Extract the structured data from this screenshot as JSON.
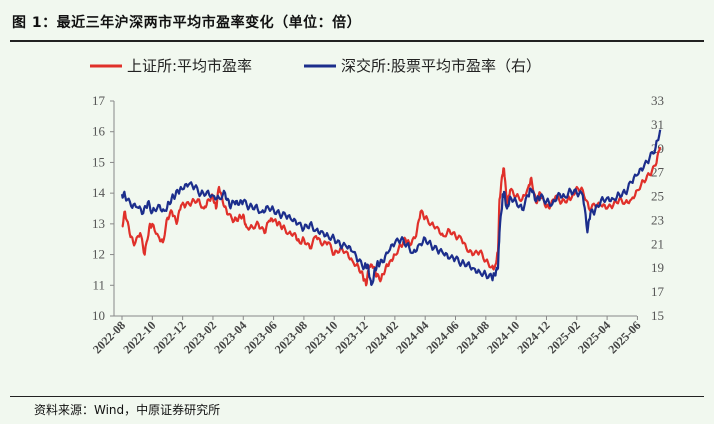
{
  "header": {
    "title": "图 1：最近三年沪深两市平均市盈率变化（单位：倍）"
  },
  "footer": {
    "source": "资料来源：Wind，中原证券研究所"
  },
  "colors": {
    "shanghai": "#e0302a",
    "shenzhen": "#1c2e8c",
    "background": "#f1f8ef"
  },
  "chart_data": {
    "type": "line",
    "title": "最近三年沪深两市平均市盈率变化（单位：倍）",
    "x_categories": [
      "2022-08",
      "2022-10",
      "2022-12",
      "2023-02",
      "2023-04",
      "2023-06",
      "2023-08",
      "2023-10",
      "2023-12",
      "2024-02",
      "2024-04",
      "2024-06",
      "2024-08",
      "2024-10",
      "2024-12",
      "2025-02",
      "2025-04",
      "2025-06"
    ],
    "left_axis": {
      "min": 10,
      "max": 17,
      "ticks": [
        10,
        11,
        12,
        13,
        14,
        15,
        16,
        17
      ]
    },
    "right_axis": {
      "min": 15,
      "max": 33,
      "ticks": [
        15,
        17,
        19,
        21,
        23,
        25,
        27,
        29,
        31,
        33
      ]
    },
    "series": [
      {
        "name": "上证所:平均市盈率",
        "axis": "left",
        "points": [
          [
            0,
            12.9
          ],
          [
            0.1,
            13.4
          ],
          [
            0.25,
            12.7
          ],
          [
            0.4,
            12.3
          ],
          [
            0.6,
            12.7
          ],
          [
            0.75,
            12.0
          ],
          [
            0.9,
            12.9
          ],
          [
            1.0,
            13.0
          ],
          [
            1.2,
            12.6
          ],
          [
            1.35,
            12.4
          ],
          [
            1.5,
            13.2
          ],
          [
            1.65,
            13.4
          ],
          [
            1.8,
            13.0
          ],
          [
            1.95,
            13.6
          ],
          [
            2.1,
            13.6
          ],
          [
            2.3,
            13.7
          ],
          [
            2.5,
            13.8
          ],
          [
            2.7,
            13.5
          ],
          [
            2.85,
            13.8
          ],
          [
            3.0,
            13.9
          ],
          [
            3.1,
            13.5
          ],
          [
            3.2,
            14.2
          ],
          [
            3.35,
            13.6
          ],
          [
            3.5,
            13.3
          ],
          [
            3.7,
            13.1
          ],
          [
            3.85,
            13.2
          ],
          [
            4.0,
            13.3
          ],
          [
            4.1,
            12.9
          ],
          [
            4.3,
            12.9
          ],
          [
            4.5,
            13.0
          ],
          [
            4.7,
            12.7
          ],
          [
            4.85,
            13.1
          ],
          [
            5.0,
            13.1
          ],
          [
            5.15,
            13.0
          ],
          [
            5.3,
            12.9
          ],
          [
            5.5,
            12.7
          ],
          [
            5.7,
            12.7
          ],
          [
            5.85,
            12.4
          ],
          [
            6.0,
            12.5
          ],
          [
            6.2,
            12.2
          ],
          [
            6.4,
            12.6
          ],
          [
            6.6,
            12.3
          ],
          [
            6.8,
            12.4
          ],
          [
            7.0,
            12.0
          ],
          [
            7.2,
            12.2
          ],
          [
            7.4,
            12.1
          ],
          [
            7.6,
            11.8
          ],
          [
            7.8,
            11.6
          ],
          [
            7.95,
            11.3
          ],
          [
            8.05,
            11.0
          ],
          [
            8.15,
            11.6
          ],
          [
            8.3,
            11.6
          ],
          [
            8.4,
            11.3
          ],
          [
            8.55,
            11.2
          ],
          [
            8.7,
            11.6
          ],
          [
            8.85,
            11.8
          ],
          [
            9.0,
            12.0
          ],
          [
            9.2,
            12.3
          ],
          [
            9.35,
            12.5
          ],
          [
            9.5,
            12.3
          ],
          [
            9.7,
            12.6
          ],
          [
            9.85,
            13.4
          ],
          [
            10.0,
            13.2
          ],
          [
            10.2,
            13.0
          ],
          [
            10.4,
            12.9
          ],
          [
            10.6,
            12.6
          ],
          [
            10.8,
            12.8
          ],
          [
            11.0,
            12.6
          ],
          [
            11.2,
            12.5
          ],
          [
            11.4,
            12.1
          ],
          [
            11.6,
            12.0
          ],
          [
            11.8,
            12.1
          ],
          [
            12.0,
            11.8
          ],
          [
            12.2,
            11.6
          ],
          [
            12.3,
            11.6
          ],
          [
            12.4,
            12.1
          ],
          [
            12.45,
            13.8
          ],
          [
            12.55,
            14.6
          ],
          [
            12.6,
            14.8
          ],
          [
            12.7,
            13.6
          ],
          [
            12.8,
            14.1
          ],
          [
            13.0,
            13.9
          ],
          [
            13.2,
            13.8
          ],
          [
            13.4,
            14.2
          ],
          [
            13.5,
            14.5
          ],
          [
            13.65,
            13.7
          ],
          [
            13.8,
            14.0
          ],
          [
            13.95,
            13.6
          ],
          [
            14.1,
            13.5
          ],
          [
            14.3,
            13.9
          ],
          [
            14.5,
            13.7
          ],
          [
            14.7,
            13.8
          ],
          [
            14.85,
            13.9
          ],
          [
            15.0,
            14.2
          ],
          [
            15.2,
            14.1
          ],
          [
            15.4,
            13.5
          ],
          [
            15.6,
            13.6
          ],
          [
            15.8,
            13.6
          ],
          [
            16.0,
            13.5
          ],
          [
            16.2,
            13.6
          ],
          [
            16.4,
            13.8
          ],
          [
            16.6,
            13.7
          ],
          [
            16.8,
            13.8
          ],
          [
            17.0,
            14.1
          ],
          [
            17.2,
            14.4
          ],
          [
            17.4,
            14.6
          ],
          [
            17.6,
            14.9
          ],
          [
            17.75,
            15.5
          ]
        ]
      },
      {
        "name": "深交所:股票平均市盈率（右）",
        "axis": "right",
        "points": [
          [
            0,
            25.2
          ],
          [
            0.1,
            25.1
          ],
          [
            0.3,
            24.2
          ],
          [
            0.5,
            24.1
          ],
          [
            0.7,
            23.6
          ],
          [
            0.85,
            24.5
          ],
          [
            1.0,
            23.7
          ],
          [
            1.2,
            24.3
          ],
          [
            1.4,
            23.8
          ],
          [
            1.55,
            24.5
          ],
          [
            1.7,
            25.0
          ],
          [
            1.85,
            25.4
          ],
          [
            2.0,
            25.6
          ],
          [
            2.2,
            26.0
          ],
          [
            2.4,
            25.8
          ],
          [
            2.6,
            25.2
          ],
          [
            2.8,
            25.4
          ],
          [
            3.0,
            25.1
          ],
          [
            3.2,
            24.9
          ],
          [
            3.4,
            25.3
          ],
          [
            3.55,
            24.2
          ],
          [
            3.7,
            24.5
          ],
          [
            3.85,
            24.3
          ],
          [
            4.0,
            24.6
          ],
          [
            4.2,
            24.1
          ],
          [
            4.4,
            24.2
          ],
          [
            4.6,
            23.7
          ],
          [
            4.8,
            24.2
          ],
          [
            5.0,
            23.9
          ],
          [
            5.2,
            23.5
          ],
          [
            5.4,
            23.4
          ],
          [
            5.6,
            23.0
          ],
          [
            5.8,
            22.7
          ],
          [
            6.0,
            22.3
          ],
          [
            6.2,
            22.7
          ],
          [
            6.4,
            22.2
          ],
          [
            6.6,
            22.1
          ],
          [
            6.8,
            21.7
          ],
          [
            7.0,
            21.5
          ],
          [
            7.2,
            20.9
          ],
          [
            7.4,
            20.8
          ],
          [
            7.6,
            20.4
          ],
          [
            7.8,
            19.6
          ],
          [
            8.0,
            19.1
          ],
          [
            8.1,
            19.3
          ],
          [
            8.2,
            18.0
          ],
          [
            8.25,
            17.7
          ],
          [
            8.35,
            19.0
          ],
          [
            8.45,
            19.4
          ],
          [
            8.6,
            19.5
          ],
          [
            8.8,
            20.4
          ],
          [
            9.0,
            21.1
          ],
          [
            9.2,
            21.4
          ],
          [
            9.4,
            21.0
          ],
          [
            9.6,
            20.3
          ],
          [
            9.8,
            21.0
          ],
          [
            10.0,
            21.5
          ],
          [
            10.2,
            20.9
          ],
          [
            10.4,
            20.5
          ],
          [
            10.6,
            20.2
          ],
          [
            10.8,
            19.8
          ],
          [
            11.0,
            19.8
          ],
          [
            11.2,
            19.4
          ],
          [
            11.4,
            19.4
          ],
          [
            11.6,
            19.0
          ],
          [
            11.8,
            18.7
          ],
          [
            12.0,
            18.5
          ],
          [
            12.2,
            18.2
          ],
          [
            12.3,
            18.4
          ],
          [
            12.4,
            19.0
          ],
          [
            12.45,
            22.0
          ],
          [
            12.55,
            24.8
          ],
          [
            12.6,
            25.4
          ],
          [
            12.7,
            24.0
          ],
          [
            12.8,
            25.0
          ],
          [
            13.0,
            24.6
          ],
          [
            13.2,
            23.9
          ],
          [
            13.4,
            25.1
          ],
          [
            13.5,
            25.6
          ],
          [
            13.65,
            24.6
          ],
          [
            13.8,
            25.0
          ],
          [
            14.0,
            24.6
          ],
          [
            14.2,
            24.4
          ],
          [
            14.4,
            25.3
          ],
          [
            14.6,
            25.0
          ],
          [
            14.8,
            25.5
          ],
          [
            15.0,
            25.3
          ],
          [
            15.2,
            25.1
          ],
          [
            15.35,
            22.0
          ],
          [
            15.45,
            23.6
          ],
          [
            15.6,
            23.8
          ],
          [
            15.8,
            24.7
          ],
          [
            16.0,
            24.9
          ],
          [
            16.2,
            24.8
          ],
          [
            16.4,
            25.2
          ],
          [
            16.6,
            25.3
          ],
          [
            16.8,
            26.2
          ],
          [
            17.0,
            26.8
          ],
          [
            17.2,
            27.4
          ],
          [
            17.4,
            28.2
          ],
          [
            17.6,
            29.1
          ],
          [
            17.75,
            30.6
          ]
        ]
      }
    ],
    "legend": "top"
  }
}
